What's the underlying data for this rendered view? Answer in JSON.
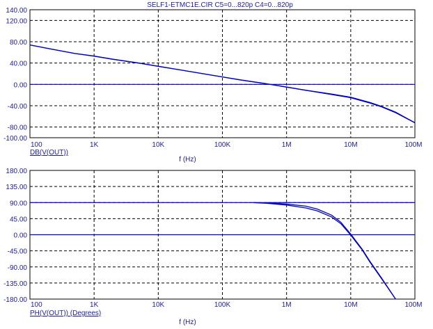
{
  "title": "SELF1-ETMC1E.CIR C5=0...820p C4=0...820p",
  "colors": {
    "curve": "#0000cc",
    "text": "#1a1aa6",
    "grid": "#000000",
    "background": "#ffffff"
  },
  "chart_data": [
    {
      "type": "line",
      "x_scale": "log",
      "xlim": [
        100,
        100000000
      ],
      "ylim": [
        -100,
        140
      ],
      "grid": true,
      "ylabel": "DB(V(OUT))",
      "xlabel": "f (Hz)",
      "x_ticks": [
        "100",
        "1K",
        "10K",
        "100K",
        "1M",
        "10M",
        "100M"
      ],
      "y_ticks": [
        "140.00",
        "120.00",
        "80.00",
        "40.00",
        "0.00",
        "-40.00",
        "-80.00",
        "-100.00"
      ],
      "y_tick_values": [
        140,
        120,
        80,
        40,
        0,
        -40,
        -80,
        -100
      ],
      "reference_line_y": 0,
      "series": [
        {
          "x": [
            100,
            200,
            500,
            1000,
            2000,
            5000,
            10000,
            20000,
            50000,
            100000,
            200000,
            500000,
            1000000,
            2000000,
            5000000,
            10000000,
            20000000,
            30000000,
            50000000,
            100000000
          ],
          "y": [
            74,
            67,
            58,
            53,
            47,
            40,
            34,
            28,
            20,
            14,
            8,
            1,
            -5,
            -11,
            -19,
            -25,
            -35,
            -42,
            -53,
            -72
          ]
        },
        {
          "x": [
            100,
            200,
            500,
            1000,
            2000,
            5000,
            10000,
            20000,
            50000,
            100000,
            200000,
            500000,
            1000000,
            2000000,
            5000000,
            10000000,
            20000000,
            30000000,
            50000000,
            100000000
          ],
          "y": [
            74,
            67,
            58,
            53,
            47,
            40,
            34,
            28,
            20,
            14,
            8,
            1,
            -5,
            -11,
            -18,
            -24,
            -34,
            -41,
            -52,
            -72
          ]
        }
      ]
    },
    {
      "type": "line",
      "x_scale": "log",
      "xlim": [
        100,
        100000000
      ],
      "ylim": [
        -180,
        180
      ],
      "grid": true,
      "ylabel": "PH(V(OUT)) (Degrees)",
      "xlabel": "f (Hz)",
      "x_ticks": [
        "100",
        "1K",
        "10K",
        "100K",
        "1M",
        "10M",
        "100M"
      ],
      "y_ticks": [
        "180.00",
        "135.00",
        "90.00",
        "45.00",
        "0.00",
        "-45.00",
        "-90.00",
        "-135.00",
        "-180.00"
      ],
      "y_tick_values": [
        180,
        135,
        90,
        45,
        0,
        -45,
        -90,
        -135,
        -180
      ],
      "reference_lines_y": [
        90,
        0
      ],
      "series": [
        {
          "x": [
            300000,
            500000,
            1000000,
            2000000,
            3000000,
            5000000,
            7000000,
            10000000,
            15000000,
            20000000,
            30000000,
            50000000
          ],
          "y": [
            90,
            89,
            86,
            80,
            72,
            55,
            35,
            2,
            -40,
            -75,
            -120,
            -180
          ]
        },
        {
          "x": [
            300000,
            500000,
            1000000,
            2000000,
            3000000,
            5000000,
            7000000,
            10000000,
            15000000,
            20000000,
            30000000,
            50000000
          ],
          "y": [
            90,
            88,
            83,
            75,
            67,
            50,
            31,
            -1,
            -42,
            -77,
            -122,
            -180
          ]
        }
      ]
    }
  ]
}
